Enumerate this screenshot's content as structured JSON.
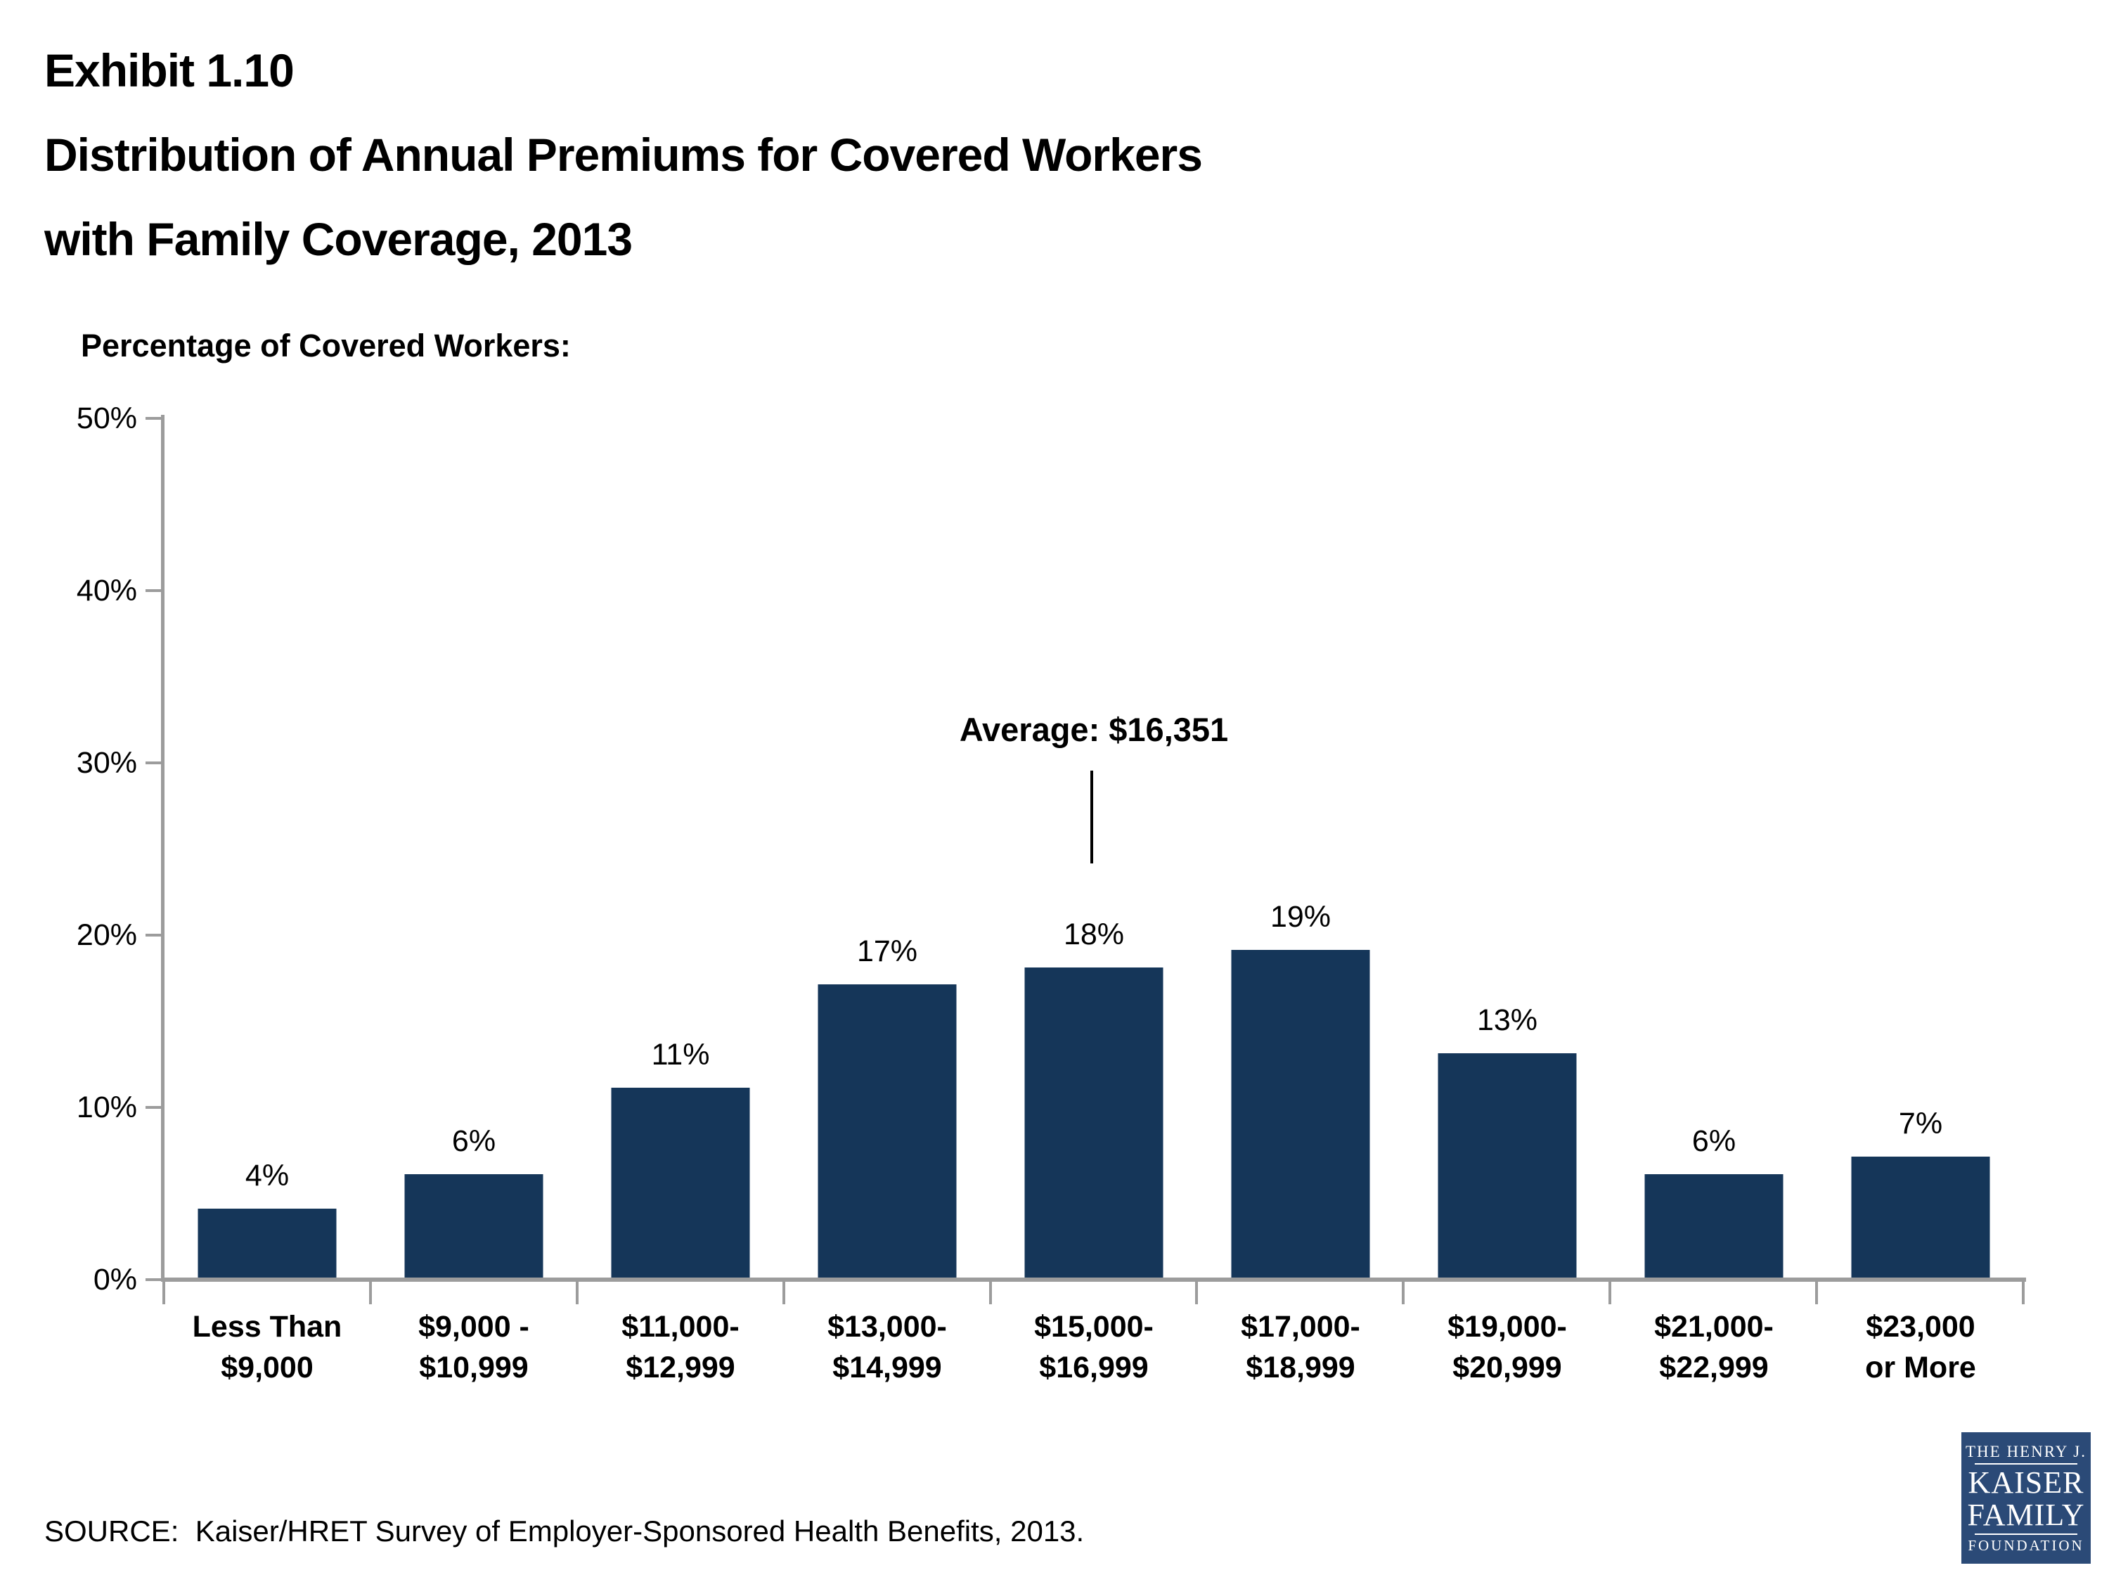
{
  "page": {
    "title_lines": [
      "Exhibit 1.10",
      "Distribution of Annual Premiums for Covered Workers",
      "with Family Coverage, 2013"
    ],
    "source": "SOURCE:  Kaiser/HRET Survey of Employer-Sponsored Health Benefits, 2013."
  },
  "chart_data": {
    "type": "bar",
    "title": "Distribution of Annual Premiums for Covered Workers with Family Coverage, 2013",
    "ylabel": "Percentage of Covered Workers:",
    "xlabel": "",
    "ylim": [
      0,
      50
    ],
    "ytick_step": 10,
    "ytick_labels": [
      "0%",
      "10%",
      "20%",
      "30%",
      "40%",
      "50%"
    ],
    "grid": false,
    "legend": "none",
    "bar_color": "#153659",
    "axis_color": "#9C9C9C",
    "categories": [
      [
        "Less Than",
        "$9,000"
      ],
      [
        "$9,000 -",
        "$10,999"
      ],
      [
        "$11,000-",
        "$12,999"
      ],
      [
        "$13,000-",
        "$14,999"
      ],
      [
        "$15,000-",
        "$16,999"
      ],
      [
        "$17,000-",
        "$18,999"
      ],
      [
        "$19,000-",
        "$20,999"
      ],
      [
        "$21,000-",
        "$22,999"
      ],
      [
        "$23,000",
        "or More"
      ]
    ],
    "values": [
      4,
      6,
      11,
      17,
      18,
      19,
      13,
      6,
      7
    ],
    "value_labels": [
      "4%",
      "6%",
      "11%",
      "17%",
      "18%",
      "19%",
      "13%",
      "6%",
      "7%"
    ],
    "annotation": {
      "text": "Average: $16,351",
      "target_category_index": 4
    }
  },
  "logo": {
    "bg_color": "#2B4A77",
    "line1": "THE HENRY J.",
    "line2": "KAISER",
    "line3": "FAMILY",
    "line4": "FOUNDATION"
  }
}
